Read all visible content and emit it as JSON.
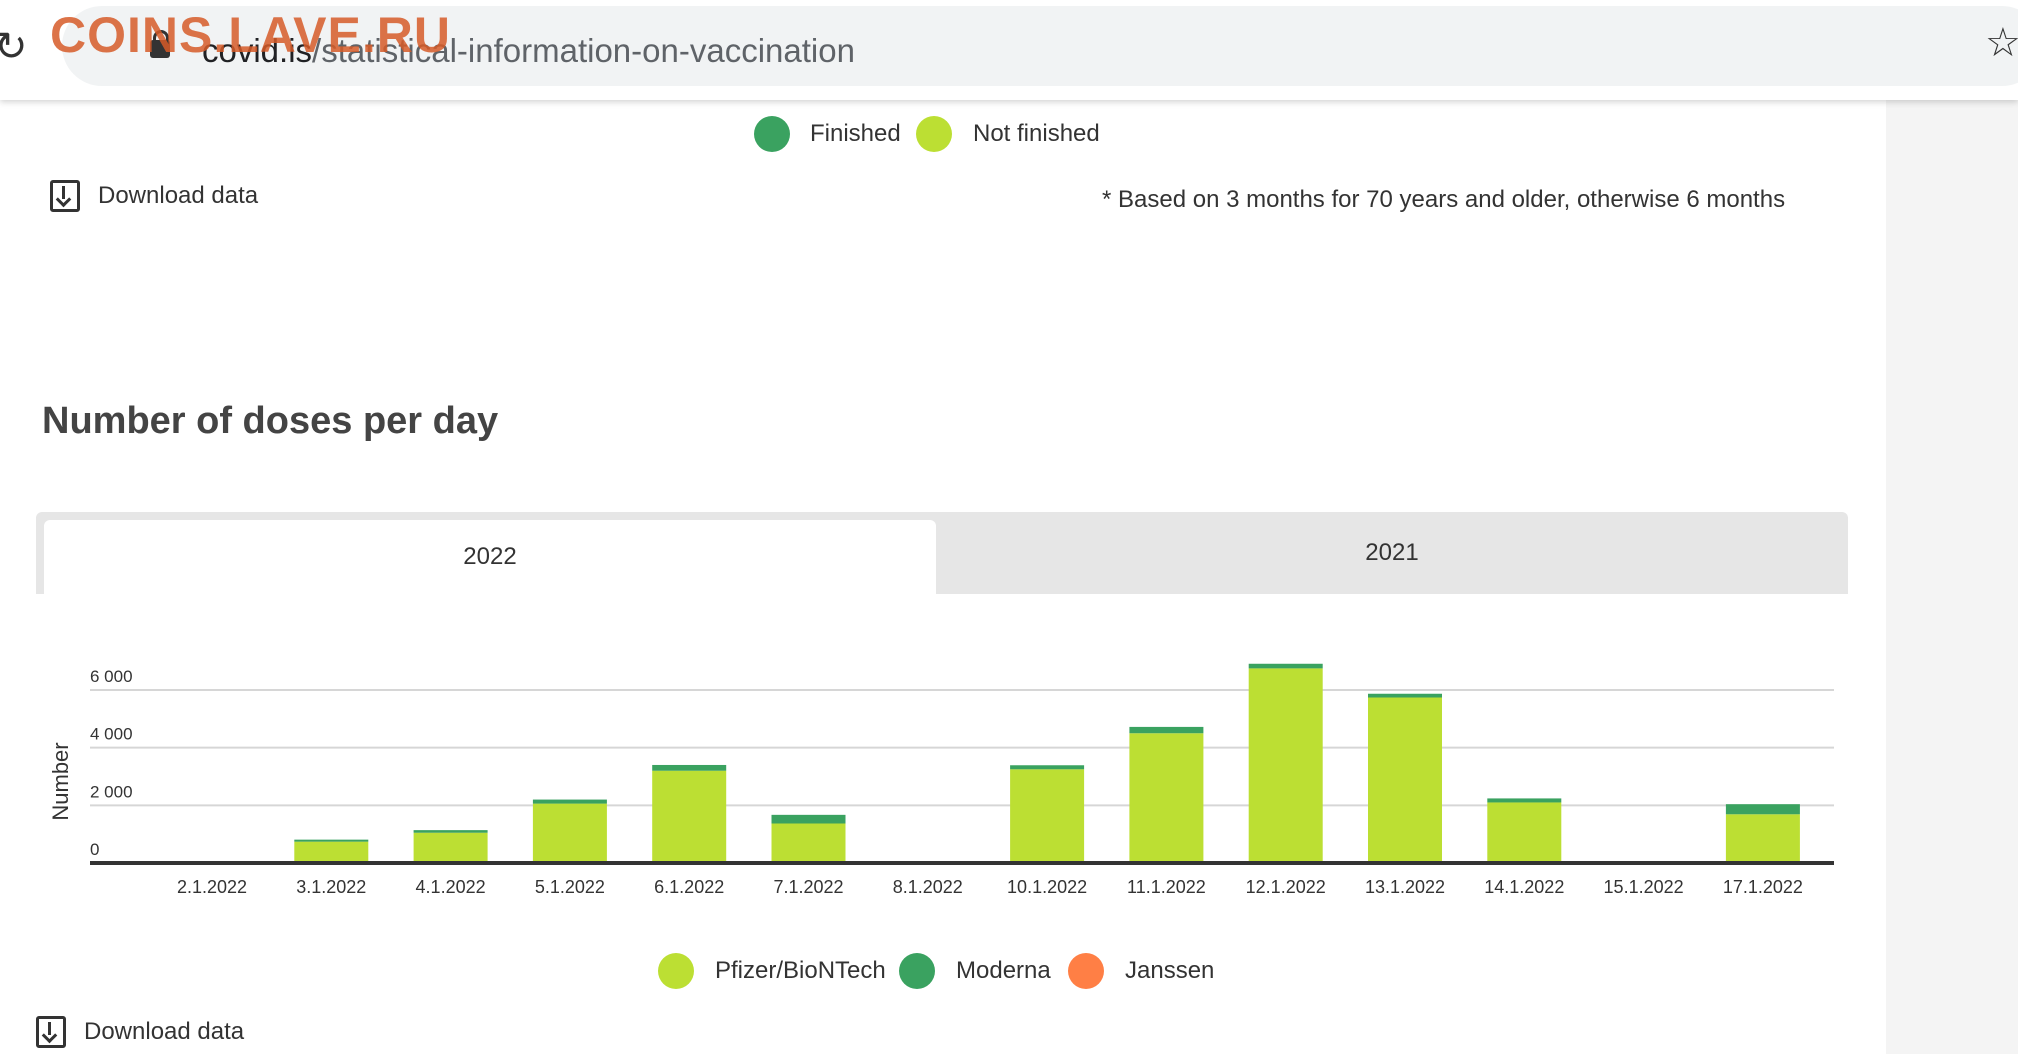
{
  "browser": {
    "url_domain": "covid.is",
    "url_path": "/statistical-information-on-vaccination",
    "watermark": "COINS.LAVE.RU"
  },
  "top_legend": {
    "items": [
      {
        "label": "Finished",
        "color": "#3aa260"
      },
      {
        "label": "Not finished",
        "color": "#bcdf33"
      }
    ]
  },
  "download_label": "Download data",
  "note": "* Based on 3 months for 70 years and older, otherwise 6 months",
  "section_title": "Number of doses per day",
  "tabs": [
    {
      "label": "2022",
      "active": true
    },
    {
      "label": "2021",
      "active": false
    }
  ],
  "chart_data": {
    "type": "bar",
    "stacked": true,
    "ylabel": "Number",
    "ylim": [
      0,
      6000
    ],
    "yticks": [
      0,
      2000,
      4000,
      6000
    ],
    "ytick_labels": [
      "0",
      "2 000",
      "4 000",
      "6 000"
    ],
    "categories": [
      "2.1.2022",
      "3.1.2022",
      "4.1.2022",
      "5.1.2022",
      "6.1.2022",
      "7.1.2022",
      "8.1.2022",
      "10.1.2022",
      "11.1.2022",
      "12.1.2022",
      "13.1.2022",
      "14.1.2022",
      "15.1.2022",
      "17.1.2022"
    ],
    "series": [
      {
        "name": "Pfizer/BioNTech",
        "color": "#bcdf33",
        "values": [
          0,
          740,
          1050,
          2060,
          3200,
          1370,
          0,
          3250,
          4500,
          6750,
          5740,
          2100,
          0,
          1690
        ]
      },
      {
        "name": "Moderna",
        "color": "#3aa260",
        "values": [
          0,
          70,
          90,
          140,
          200,
          300,
          0,
          140,
          220,
          160,
          130,
          140,
          0,
          350
        ]
      },
      {
        "name": "Janssen",
        "color": "#ff7f45",
        "values": [
          0,
          0,
          0,
          0,
          0,
          0,
          0,
          0,
          0,
          0,
          0,
          0,
          0,
          0
        ]
      }
    ],
    "grid": true,
    "legend": "bottom"
  }
}
